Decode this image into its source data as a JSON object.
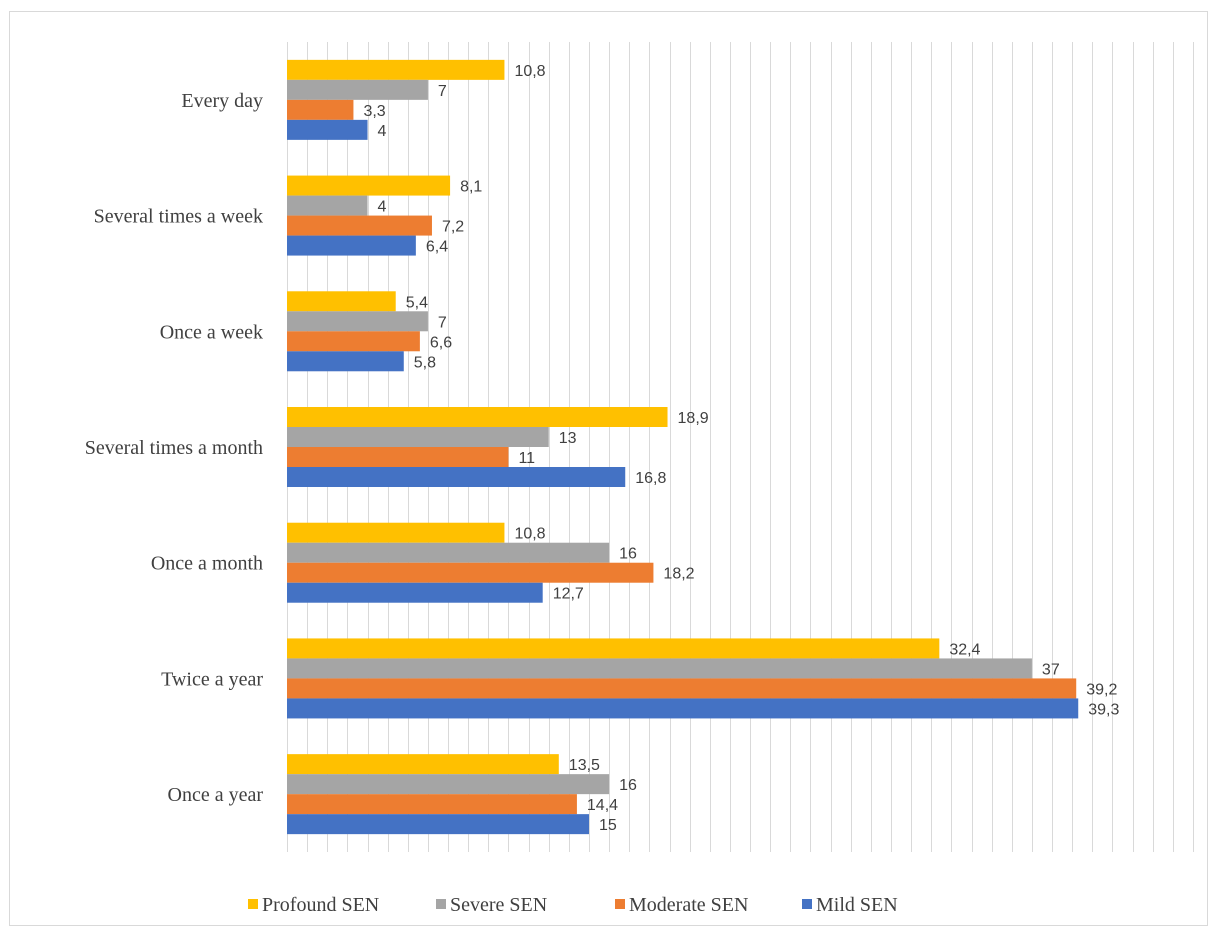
{
  "chart_data": {
    "type": "bar",
    "orientation": "horizontal",
    "title": "",
    "xlabel": "",
    "ylabel": "",
    "categories": [
      "Every day",
      "Several times a week",
      "Once a week",
      "Several times a month",
      "Once a month",
      "Twice a year",
      "Once a year"
    ],
    "series": [
      {
        "name": "Profound SEN",
        "color": "#FFC000",
        "values": [
          10.8,
          8.1,
          5.4,
          18.9,
          10.8,
          32.4,
          13.5
        ],
        "labels": [
          "10,8",
          "8,1",
          "5,4",
          "18,9",
          "10,8",
          "32,4",
          "13,5"
        ]
      },
      {
        "name": "Severe SEN",
        "color": "#A5A5A5",
        "values": [
          7,
          4,
          7,
          13,
          16,
          37,
          16
        ],
        "labels": [
          "7",
          "4",
          "7",
          "13",
          "16",
          "37",
          "16"
        ]
      },
      {
        "name": "Moderate SEN",
        "color": "#ED7D31",
        "values": [
          3.3,
          7.2,
          6.6,
          11,
          18.2,
          39.2,
          14.4
        ],
        "labels": [
          "3,3",
          "7,2",
          "6,6",
          "11",
          "18,2",
          "39,2",
          "14,4"
        ]
      },
      {
        "name": "Mild SEN",
        "color": "#4472C4",
        "values": [
          4,
          6.4,
          5.8,
          16.8,
          12.7,
          39.3,
          15
        ],
        "labels": [
          "4",
          "6,4",
          "5,8",
          "16,8",
          "12,7",
          "39,3",
          "15"
        ]
      }
    ],
    "xlim": [
      0,
      45
    ],
    "grid": true,
    "legend_position": "bottom"
  }
}
